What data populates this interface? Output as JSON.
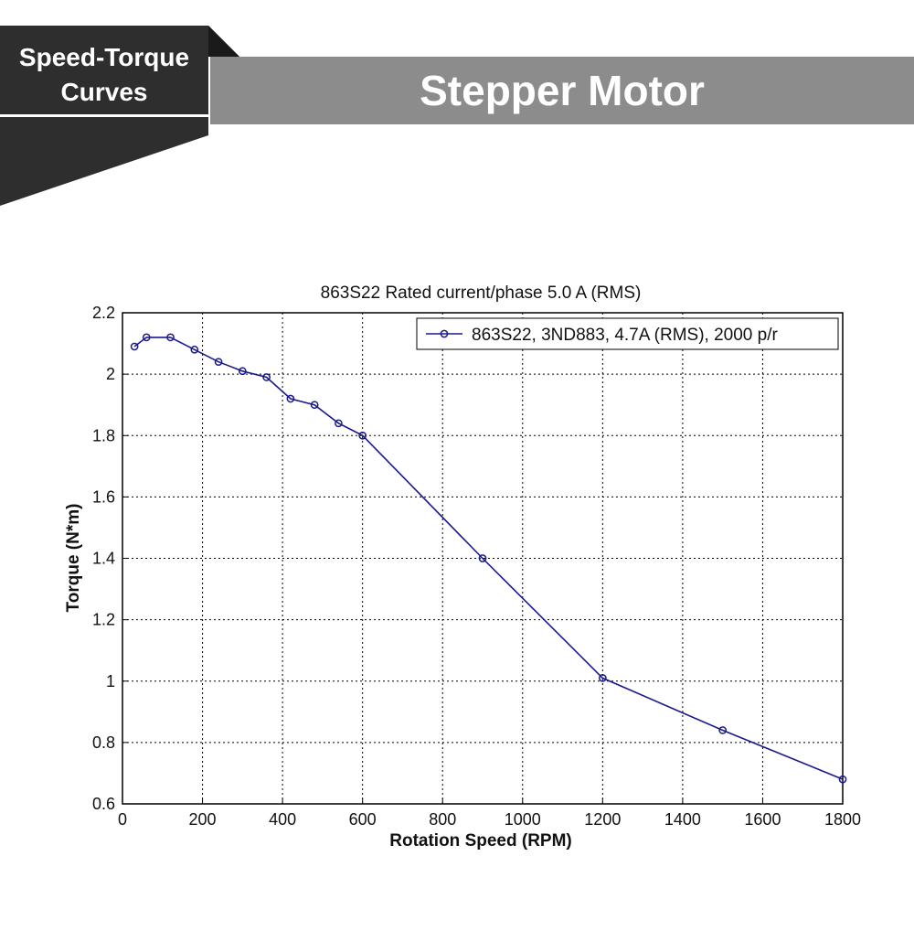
{
  "banner": {
    "tag_line1": "Speed-Torque",
    "tag_line2": "Curves",
    "title": "Stepper Motor",
    "colors": {
      "tag_bg": "#2e2e2e",
      "title_bg": "#8c8c8c",
      "text": "#ffffff"
    }
  },
  "chart_data": {
    "type": "line",
    "title": "863S22 Rated current/phase 5.0 A (RMS)",
    "xlabel": "Rotation Speed (RPM)",
    "ylabel": "Torque (N*m)",
    "xlim": [
      0,
      1800
    ],
    "ylim": [
      0.6,
      2.2
    ],
    "xticks": [
      0,
      200,
      400,
      600,
      800,
      1000,
      1200,
      1400,
      1600,
      1800
    ],
    "yticks": [
      0.6,
      0.8,
      1,
      1.2,
      1.4,
      1.6,
      1.8,
      2,
      2.2
    ],
    "xtick_labels": [
      "0",
      "200",
      "400",
      "600",
      "800",
      "1000",
      "1200",
      "1400",
      "1600",
      "1800"
    ],
    "ytick_labels": [
      "0.6",
      "0.8",
      "1",
      "1.2",
      "1.4",
      "1.6",
      "1.8",
      "2",
      "2.2"
    ],
    "grid": true,
    "legend_position": "top-right",
    "series": [
      {
        "name": "863S22, 3ND883, 4.7A (RMS), 2000 p/r",
        "color": "#1a1a8c",
        "marker": "circle",
        "x": [
          30,
          60,
          120,
          180,
          240,
          300,
          360,
          420,
          480,
          540,
          600,
          900,
          1200,
          1500,
          1800
        ],
        "y": [
          2.09,
          2.12,
          2.12,
          2.08,
          2.04,
          2.01,
          1.99,
          1.92,
          1.9,
          1.84,
          1.8,
          1.4,
          1.01,
          0.84,
          0.68
        ]
      }
    ]
  }
}
